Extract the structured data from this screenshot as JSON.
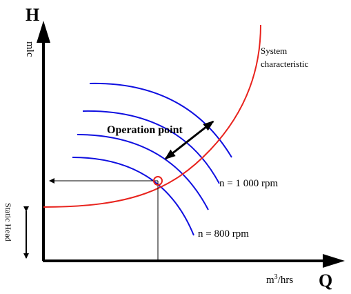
{
  "axes": {
    "y_symbol": "H",
    "y_unit": "mlc",
    "x_symbol": "Q",
    "x_unit_base": "m",
    "x_unit_exp": "3",
    "x_unit_rest": "/hrs"
  },
  "system_curve": {
    "label_line1": "System",
    "label_line2": "characteristic",
    "color": "#e8231d"
  },
  "pump_curves": {
    "color": "#1010e0",
    "high_speed_label": "n = 1 000 rpm",
    "low_speed_label": "n = 800 rpm"
  },
  "operation_point": {
    "label": "Operation point",
    "marker_color": "#e8231d"
  },
  "static_head": {
    "label": "Static Head"
  }
}
